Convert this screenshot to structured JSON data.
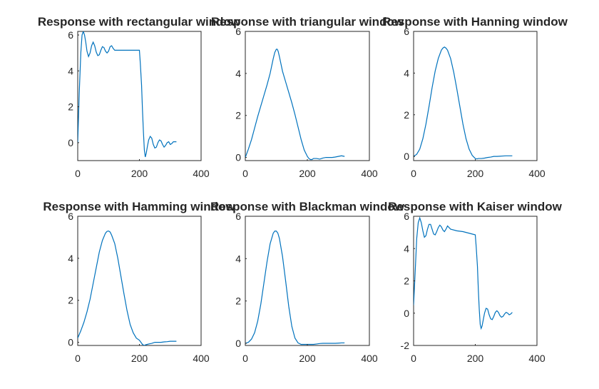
{
  "figure": {
    "line_color": "#0072bd",
    "axis_color": "#262626",
    "background": "#ffffff"
  },
  "chart_data": [
    {
      "type": "line",
      "title": "Response with rectangular window",
      "xlim": [
        0,
        400
      ],
      "ylim": [
        -1,
        6.2
      ],
      "xticks": [
        0,
        200,
        400
      ],
      "yticks": [
        0,
        2,
        4,
        6
      ],
      "grid": false,
      "series": [
        {
          "x": [
            0,
            5,
            10,
            14,
            18,
            22,
            26,
            30,
            35,
            40,
            45,
            50,
            55,
            60,
            65,
            70,
            75,
            80,
            85,
            90,
            95,
            100,
            105,
            110,
            115,
            120,
            140,
            160,
            180,
            200,
            203,
            207,
            210,
            213,
            216,
            219,
            222,
            226,
            230,
            235,
            240,
            245,
            250,
            255,
            260,
            265,
            270,
            275,
            280,
            285,
            290,
            295,
            300,
            305,
            310,
            315,
            320
          ],
          "y": [
            0,
            2.8,
            5,
            6,
            6.2,
            6,
            5.6,
            5.1,
            4.8,
            5,
            5.4,
            5.6,
            5.4,
            5.05,
            4.85,
            4.9,
            5.15,
            5.35,
            5.3,
            5.1,
            5,
            5.1,
            5.35,
            5.4,
            5.25,
            5.15,
            5.15,
            5.15,
            5.15,
            5.15,
            4.4,
            3.2,
            1.8,
            0.6,
            -0.4,
            -0.8,
            -0.6,
            -0.2,
            0.15,
            0.35,
            0.25,
            -0.1,
            -0.3,
            -0.25,
            0,
            0.15,
            0.1,
            -0.1,
            -0.25,
            -0.15,
            0,
            0.05,
            -0.1,
            -0.05,
            0.05,
            0.05,
            0.05
          ]
        }
      ]
    },
    {
      "type": "line",
      "title": "Response with triangular window",
      "xlim": [
        0,
        400
      ],
      "ylim": [
        -0.15,
        6
      ],
      "xticks": [
        0,
        200,
        400
      ],
      "yticks": [
        0,
        2,
        4,
        6
      ],
      "grid": false,
      "series": [
        {
          "x": [
            0,
            10,
            20,
            30,
            40,
            50,
            60,
            70,
            80,
            85,
            90,
            95,
            100,
            103,
            106,
            110,
            115,
            120,
            125,
            130,
            140,
            150,
            160,
            170,
            180,
            190,
            200,
            205,
            210,
            215,
            220,
            230,
            240,
            250,
            260,
            270,
            280,
            290,
            300,
            310,
            320
          ],
          "y": [
            0,
            0.4,
            0.85,
            1.4,
            1.95,
            2.45,
            2.95,
            3.45,
            4,
            4.35,
            4.7,
            5,
            5.15,
            5.15,
            5.05,
            4.8,
            4.45,
            4.1,
            3.85,
            3.6,
            3.1,
            2.6,
            2.05,
            1.45,
            0.85,
            0.35,
            0.05,
            -0.05,
            -0.1,
            -0.1,
            -0.05,
            -0.05,
            -0.08,
            -0.03,
            0,
            0,
            0,
            0.02,
            0.05,
            0.08,
            0.05
          ]
        }
      ]
    },
    {
      "type": "line",
      "title": "Response with Hanning window",
      "xlim": [
        0,
        400
      ],
      "ylim": [
        -0.2,
        6
      ],
      "xticks": [
        0,
        200,
        400
      ],
      "yticks": [
        0,
        2,
        4,
        6
      ],
      "grid": false,
      "series": [
        {
          "x": [
            0,
            10,
            20,
            30,
            40,
            50,
            60,
            70,
            80,
            90,
            95,
            100,
            105,
            110,
            120,
            130,
            140,
            150,
            160,
            170,
            180,
            190,
            200,
            205,
            210,
            220,
            230,
            240,
            250,
            260,
            270,
            280,
            290,
            300,
            310,
            320
          ],
          "y": [
            0,
            0.1,
            0.35,
            0.85,
            1.55,
            2.4,
            3.3,
            4.1,
            4.7,
            5.1,
            5.2,
            5.25,
            5.2,
            5.1,
            4.7,
            4.05,
            3.25,
            2.4,
            1.55,
            0.85,
            0.35,
            0.05,
            -0.1,
            -0.12,
            -0.1,
            -0.1,
            -0.08,
            -0.05,
            -0.03,
            0,
            0,
            0.01,
            0.02,
            0.03,
            0.03,
            0.03
          ]
        }
      ]
    },
    {
      "type": "line",
      "title": "Response with Hamming window",
      "xlim": [
        0,
        400
      ],
      "ylim": [
        -0.15,
        6
      ],
      "xticks": [
        0,
        200,
        400
      ],
      "yticks": [
        0,
        2,
        4,
        6
      ],
      "grid": false,
      "series": [
        {
          "x": [
            0,
            10,
            20,
            30,
            40,
            50,
            60,
            70,
            80,
            90,
            95,
            100,
            105,
            110,
            120,
            130,
            140,
            150,
            160,
            170,
            180,
            190,
            200,
            205,
            210,
            215,
            220,
            230,
            240,
            250,
            260,
            270,
            280,
            290,
            300,
            310,
            320
          ],
          "y": [
            0.2,
            0.55,
            0.95,
            1.45,
            2.05,
            2.8,
            3.55,
            4.3,
            4.85,
            5.2,
            5.28,
            5.3,
            5.25,
            5.1,
            4.7,
            4,
            3.15,
            2.3,
            1.5,
            0.85,
            0.45,
            0.2,
            0.1,
            0,
            -0.1,
            -0.15,
            -0.12,
            -0.08,
            -0.05,
            0,
            0,
            0,
            0.02,
            0.03,
            0.05,
            0.05,
            0.05
          ]
        }
      ]
    },
    {
      "type": "line",
      "title": "Response with Blackman window",
      "xlim": [
        0,
        400
      ],
      "ylim": [
        -0.1,
        6
      ],
      "xticks": [
        0,
        200,
        400
      ],
      "yticks": [
        0,
        2,
        4,
        6
      ],
      "grid": false,
      "series": [
        {
          "x": [
            0,
            10,
            20,
            30,
            40,
            50,
            60,
            70,
            80,
            90,
            95,
            100,
            105,
            110,
            120,
            130,
            140,
            150,
            160,
            170,
            180,
            190,
            200,
            210,
            220,
            230,
            240,
            250,
            260,
            270,
            280,
            290,
            300,
            310,
            320
          ],
          "y": [
            0,
            0.05,
            0.2,
            0.5,
            1.05,
            1.85,
            2.85,
            3.85,
            4.7,
            5.2,
            5.3,
            5.3,
            5.2,
            4.95,
            4.1,
            2.95,
            1.75,
            0.8,
            0.25,
            0.02,
            -0.05,
            -0.05,
            -0.05,
            -0.05,
            -0.05,
            -0.03,
            -0.01,
            0,
            0,
            0,
            0,
            0,
            0.01,
            0.02,
            0.02
          ]
        }
      ]
    },
    {
      "type": "line",
      "title": "Response with Kaiser window",
      "xlim": [
        0,
        400
      ],
      "ylim": [
        -2,
        6
      ],
      "xticks": [
        0,
        200,
        400
      ],
      "yticks": [
        -2,
        0,
        2,
        4,
        6
      ],
      "grid": false,
      "series": [
        {
          "x": [
            0,
            5,
            10,
            15,
            20,
            25,
            30,
            35,
            40,
            45,
            50,
            55,
            60,
            65,
            70,
            75,
            80,
            85,
            90,
            95,
            100,
            105,
            110,
            120,
            140,
            160,
            180,
            200,
            203,
            207,
            210,
            213,
            216,
            219,
            222,
            226,
            230,
            235,
            240,
            245,
            250,
            255,
            260,
            265,
            270,
            275,
            280,
            285,
            290,
            295,
            300,
            305,
            310,
            315,
            320
          ],
          "y": [
            0.5,
            2.5,
            4.6,
            5.6,
            5.9,
            5.6,
            5.1,
            4.7,
            4.8,
            5.2,
            5.5,
            5.5,
            5.2,
            4.9,
            4.85,
            5.05,
            5.3,
            5.45,
            5.35,
            5.15,
            5.05,
            5.2,
            5.4,
            5.2,
            5.1,
            5.05,
            4.95,
            4.85,
            4.1,
            2.9,
            1.4,
            0.2,
            -0.7,
            -0.95,
            -0.8,
            -0.4,
            0,
            0.3,
            0.25,
            -0.1,
            -0.35,
            -0.4,
            -0.2,
            0.05,
            0.15,
            0.05,
            -0.15,
            -0.25,
            -0.2,
            -0.05,
            0.05,
            0,
            -0.1,
            -0.05,
            0.05
          ]
        }
      ]
    }
  ]
}
